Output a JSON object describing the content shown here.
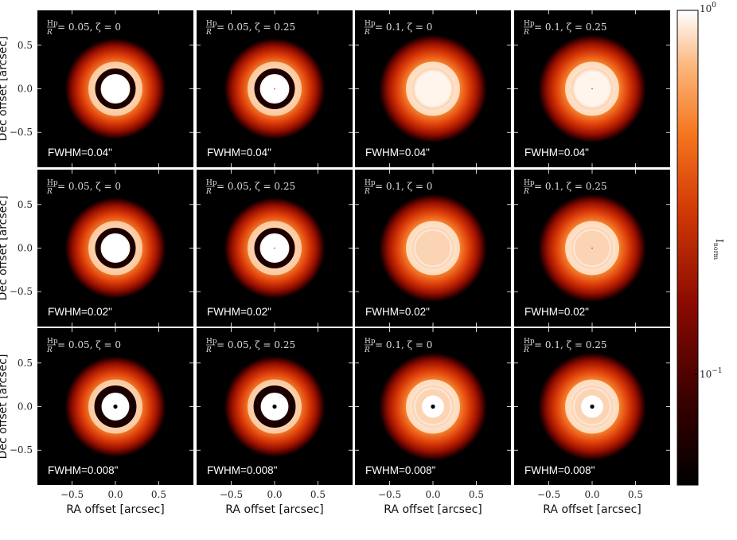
{
  "chart_data": {
    "type": "heatmap",
    "description_axes": {
      "xlabel": "RA offset [arcsec]",
      "ylabel": "Dec offset [arcsec]",
      "xlim": [
        -0.9,
        0.9
      ],
      "ylim": [
        -0.9,
        0.9
      ],
      "xticks": [
        -0.5,
        0.0,
        0.5
      ],
      "xtick_labels": [
        "−0.5",
        "0.0",
        "0.5"
      ],
      "yticks": [
        0.5,
        0.0,
        -0.5
      ],
      "ytick_labels": [
        "0.5",
        "0.0",
        "−0.5"
      ]
    },
    "colorbar": {
      "label": "I_norm",
      "scale": "log",
      "range": [
        0.03,
        1.0
      ],
      "tick_labels": [
        "10^0",
        "10^{-1}"
      ],
      "tick_values": [
        1.0,
        0.1
      ],
      "colormap": [
        "#000000",
        "#5a0000",
        "#b01800",
        "#e84a0a",
        "#f98a3a",
        "#fdc79a",
        "#ffffff"
      ]
    },
    "rows": [
      {
        "fwhm_label": "FWHM=0.04\"",
        "fwhm": 0.04
      },
      {
        "fwhm_label": "FWHM=0.02\"",
        "fwhm": 0.02
      },
      {
        "fwhm_label": "FWHM=0.008\"",
        "fwhm": 0.008
      }
    ],
    "columns": [
      {
        "param_label": "Hp/R = 0.05, ζ = 0",
        "h_over_r": 0.05,
        "zeta": 0
      },
      {
        "param_label": "Hp/R = 0.05, ζ = 0.25",
        "h_over_r": 0.05,
        "zeta": 0.25
      },
      {
        "param_label": "Hp/R = 0.1, ζ = 0",
        "h_over_r": 0.1,
        "zeta": 0
      },
      {
        "param_label": "Hp/R = 0.1, ζ = 0.25",
        "h_over_r": 0.1,
        "zeta": 0.25
      }
    ]
  },
  "text": {
    "xlabel": "RA offset [arcsec]",
    "ylabel": "Dec offset [arcsec]",
    "cbar_top": "10",
    "cbar_top_exp": "0",
    "cbar_mid": "10",
    "cbar_mid_exp": "−1",
    "cbar_label": "I",
    "cbar_label_sub": "norm"
  }
}
